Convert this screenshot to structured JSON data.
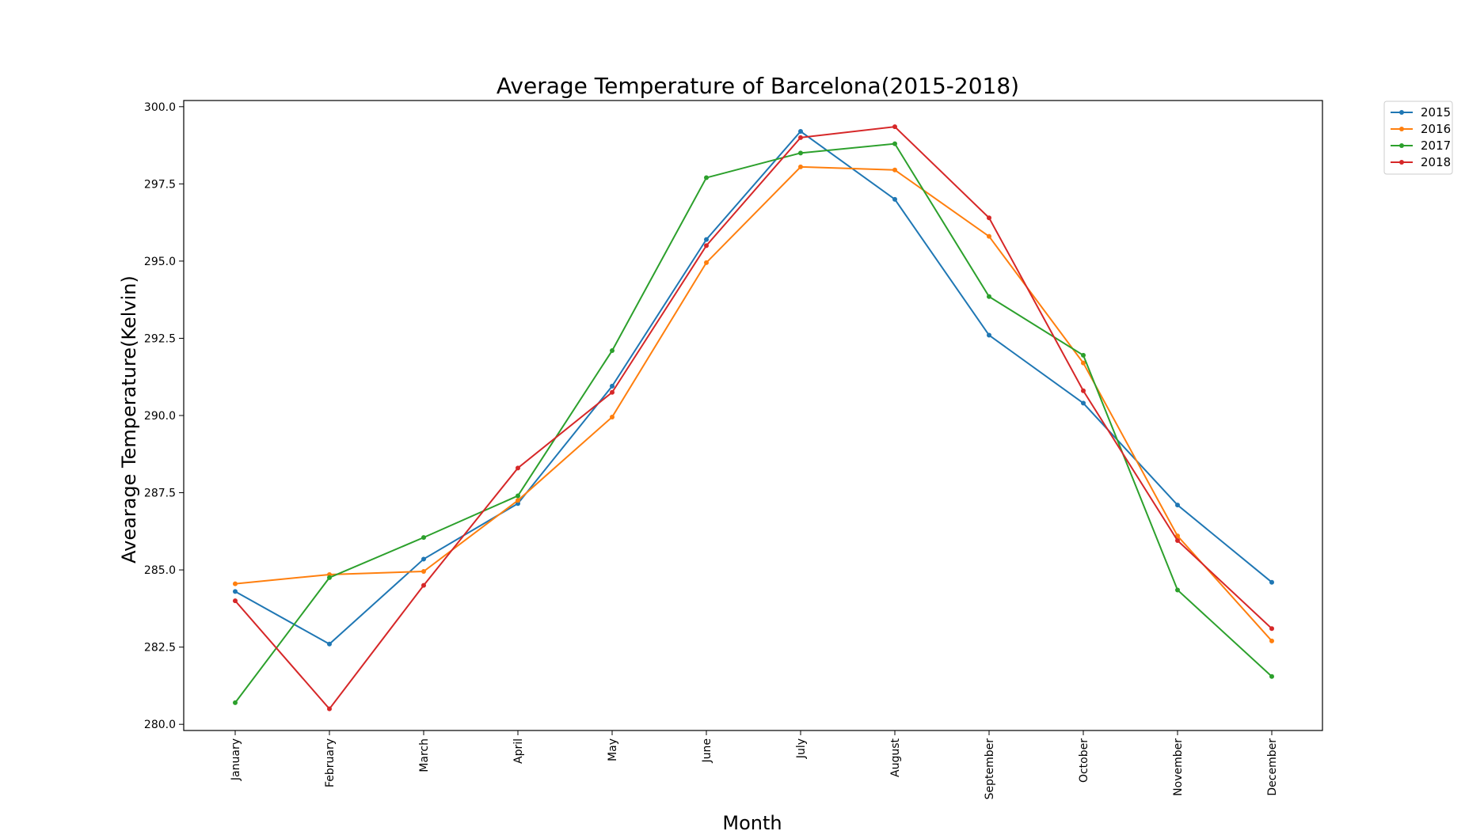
{
  "chart_data": {
    "type": "line",
    "title": "Average Temperature of Barcelona(2015-2018)",
    "xlabel": "Month",
    "ylabel": "Avearage Temperature(Kelvin)",
    "categories": [
      "January",
      "February",
      "March",
      "April",
      "May",
      "June",
      "July",
      "August",
      "September",
      "October",
      "November",
      "December"
    ],
    "ylim": [
      279.8,
      300.2
    ],
    "yticks": [
      "280.0",
      "282.5",
      "285.0",
      "287.5",
      "290.0",
      "292.5",
      "295.0",
      "297.5",
      "300.0"
    ],
    "legend_position": "outside-top-right",
    "grid": false,
    "series": [
      {
        "name": "2015",
        "color": "#1f77b4",
        "values": [
          284.3,
          282.6,
          285.35,
          287.15,
          290.95,
          295.7,
          299.2,
          297.0,
          292.6,
          290.4,
          287.1,
          284.6
        ]
      },
      {
        "name": "2016",
        "color": "#ff7f0e",
        "values": [
          284.55,
          284.85,
          284.95,
          287.25,
          289.95,
          294.95,
          298.05,
          297.95,
          295.8,
          291.7,
          286.1,
          282.7
        ]
      },
      {
        "name": "2017",
        "color": "#2ca02c",
        "values": [
          280.7,
          284.75,
          286.05,
          287.4,
          292.1,
          297.7,
          298.5,
          298.8,
          293.85,
          291.95,
          284.35,
          281.55
        ]
      },
      {
        "name": "2018",
        "color": "#d62728",
        "values": [
          284.0,
          280.5,
          284.5,
          288.3,
          290.75,
          295.5,
          299.0,
          299.35,
          296.4,
          290.8,
          285.95,
          283.1
        ]
      }
    ]
  }
}
